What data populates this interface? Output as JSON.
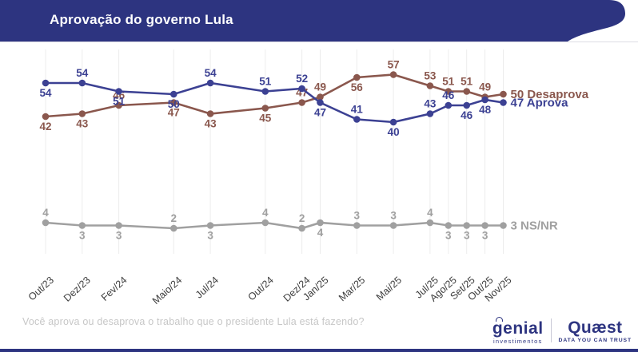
{
  "header": {
    "title": "Aprovação do governo Lula"
  },
  "colors": {
    "navy": "#2d3480",
    "approve_blue": "#3c4193",
    "disapprove_brown": "#8a574d",
    "nsnr_gray": "#a0a0a0",
    "grid": "#ececec",
    "axis_text": "#3c3c3c",
    "question_text": "#c7c7c7",
    "rule": "#dcdce3",
    "logo_divider": "#c9c9d6"
  },
  "chart_data": {
    "type": "line",
    "title": "Aprovação do governo Lula",
    "x_labels": [
      "Out/23",
      "Dez/23",
      "Fev/24",
      "Maio/24",
      "Jul/24",
      "Out/24",
      "Dez/24",
      "Jan/25",
      "Mar/25",
      "Mai/25",
      "Jul/25",
      "Ago/25",
      "Set/25",
      "Out/25",
      "Nov/25"
    ],
    "x_month_offsets": [
      0,
      2,
      4,
      7,
      9,
      12,
      14,
      15,
      17,
      19,
      21,
      22,
      23,
      24,
      25
    ],
    "ylim": [
      0,
      62
    ],
    "grid": "vertical-only",
    "legend_position": "right-of-last-point",
    "series": [
      {
        "name": "Aprova",
        "color": "#3c4193",
        "values": [
          54,
          54,
          51,
          50,
          54,
          51,
          52,
          47,
          41,
          40,
          43,
          46,
          46,
          48,
          47
        ],
        "end_label": "47 Aprova",
        "label_positions": [
          "below",
          "above",
          "below",
          "below",
          "above",
          "above",
          "above",
          "below",
          "above",
          "below",
          "above",
          "above",
          "below",
          "below",
          "end"
        ]
      },
      {
        "name": "Desaprova",
        "color": "#8a574d",
        "values": [
          42,
          43,
          46,
          47,
          43,
          45,
          47,
          49,
          56,
          57,
          53,
          51,
          51,
          49,
          50
        ],
        "end_label": "50 Desaprova",
        "label_positions": [
          "below",
          "below",
          "above",
          "below",
          "below",
          "below",
          "above",
          "above",
          "below",
          "above",
          "above",
          "above",
          "above",
          "above",
          "end"
        ]
      },
      {
        "name": "NS/NR",
        "color": "#a0a0a0",
        "values": [
          4,
          3,
          3,
          2,
          3,
          4,
          2,
          4,
          3,
          3,
          4,
          3,
          3,
          3,
          3
        ],
        "end_label": "3 NS/NR",
        "label_positions": [
          "above",
          "below",
          "below",
          "above",
          "below",
          "above",
          "above",
          "below",
          "above",
          "above",
          "above",
          "below",
          "below",
          "below",
          "end"
        ]
      }
    ]
  },
  "footer": {
    "question": "Você aprova ou desaprova o trabalho que o presidente Lula está fazendo?",
    "logos": {
      "genial": {
        "name": "genial",
        "subtitle": "investimentos"
      },
      "quaest": {
        "name": "Quæst",
        "tagline": "DATA YOU CAN TRUST"
      }
    }
  }
}
